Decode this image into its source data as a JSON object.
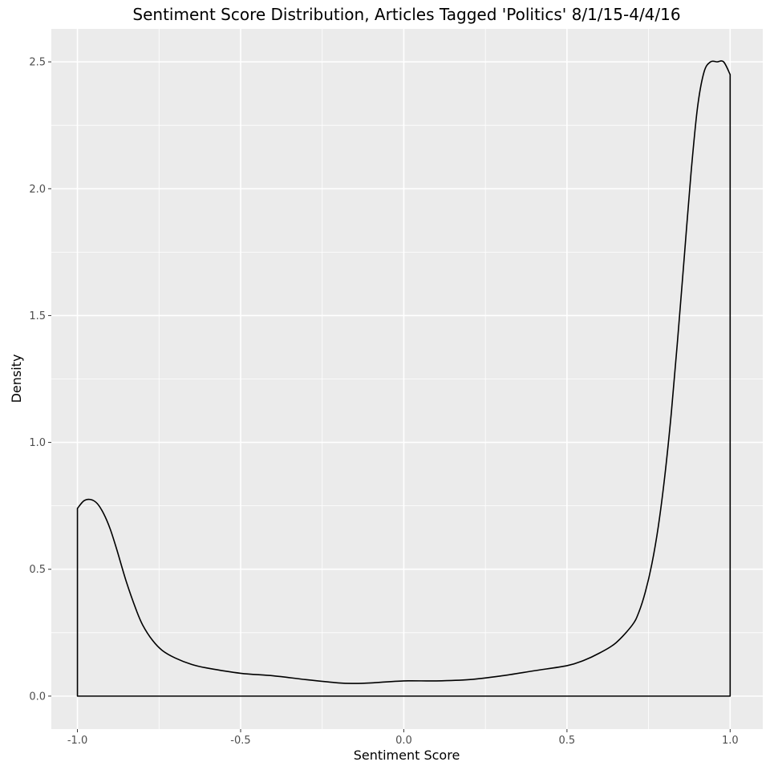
{
  "chart_data": {
    "type": "area",
    "title": "Sentiment Score Distribution, Articles Tagged 'Politics' 8/1/15-4/4/16",
    "xlabel": "Sentiment Score",
    "ylabel": "Density",
    "xlim": [
      -1.08,
      1.1
    ],
    "ylim": [
      -0.13,
      2.63
    ],
    "x_ticks": [
      -1.0,
      -0.5,
      0.0,
      0.5,
      1.0
    ],
    "x_tick_labels": [
      "-1.0",
      "-0.5",
      "0.0",
      "0.5",
      "1.0"
    ],
    "y_ticks": [
      0.0,
      0.5,
      1.0,
      1.5,
      2.0,
      2.5
    ],
    "y_tick_labels": [
      "0.0",
      "0.5",
      "1.0",
      "1.5",
      "2.0",
      "2.5"
    ],
    "grid": true,
    "legend": "none",
    "fill": "none",
    "line_color": "#000000",
    "panel_background": "#ebebeb",
    "series": [
      {
        "x": [
          -1.0,
          -0.98,
          -0.96,
          -0.94,
          -0.92,
          -0.9,
          -0.88,
          -0.85,
          -0.82,
          -0.8,
          -0.77,
          -0.74,
          -0.7,
          -0.65,
          -0.6,
          -0.5,
          -0.4,
          -0.3,
          -0.2,
          -0.15,
          -0.1,
          0.0,
          0.1,
          0.2,
          0.3,
          0.4,
          0.5,
          0.55,
          0.6,
          0.65,
          0.7,
          0.72,
          0.74,
          0.76,
          0.78,
          0.8,
          0.82,
          0.84,
          0.86,
          0.88,
          0.9,
          0.92,
          0.94,
          0.96,
          0.98,
          1.0
        ],
        "y": [
          0.74,
          0.77,
          0.775,
          0.76,
          0.72,
          0.66,
          0.58,
          0.45,
          0.34,
          0.28,
          0.22,
          0.18,
          0.15,
          0.125,
          0.11,
          0.09,
          0.08,
          0.065,
          0.052,
          0.05,
          0.052,
          0.06,
          0.06,
          0.065,
          0.08,
          0.1,
          0.12,
          0.14,
          0.17,
          0.21,
          0.28,
          0.33,
          0.41,
          0.52,
          0.67,
          0.87,
          1.12,
          1.42,
          1.74,
          2.06,
          2.32,
          2.46,
          2.5,
          2.5,
          2.5,
          2.45
        ]
      }
    ]
  }
}
